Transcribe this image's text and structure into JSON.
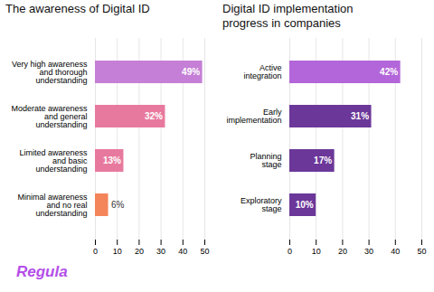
{
  "chart_data": [
    {
      "type": "bar",
      "orientation": "horizontal",
      "title": "The awareness of Digital ID",
      "categories": [
        "Very high awareness\nand thorough\nunderstanding",
        "Moderate awareness\nand general\nunderstanding",
        "Limited awareness\nand basic\nunderstanding",
        "Minimal awareness\nand no real\nunderstanding"
      ],
      "values": [
        49,
        32,
        13,
        6
      ],
      "value_labels": [
        "49%",
        "32%",
        "13%",
        "6%"
      ],
      "colors": [
        "#c57fd6",
        "#e8799e",
        "#e8799e",
        "#f4845a"
      ],
      "xlim": [
        0,
        50
      ],
      "xticks": [
        0,
        10,
        20,
        30,
        40,
        50
      ],
      "grid": true,
      "data_labels": true,
      "annotations": [
        {
          "text": "Regula",
          "color": "#b44fe8"
        }
      ]
    },
    {
      "type": "bar",
      "orientation": "horizontal",
      "title": "Digital ID implementation\nprogress in companies",
      "categories": [
        "Active\nintegration",
        "Early\nimplementation",
        "Planning\nstage",
        "Exploratory\nstage"
      ],
      "values": [
        42,
        31,
        17,
        10
      ],
      "value_labels": [
        "42%",
        "31%",
        "17%",
        "10%"
      ],
      "colors": [
        "#b366d9",
        "#6b3799",
        "#6b3799",
        "#6b3799"
      ],
      "xlim": [
        0,
        50
      ],
      "xticks": [
        0,
        10,
        20,
        30,
        40,
        50
      ],
      "grid": true,
      "data_labels": true
    }
  ]
}
